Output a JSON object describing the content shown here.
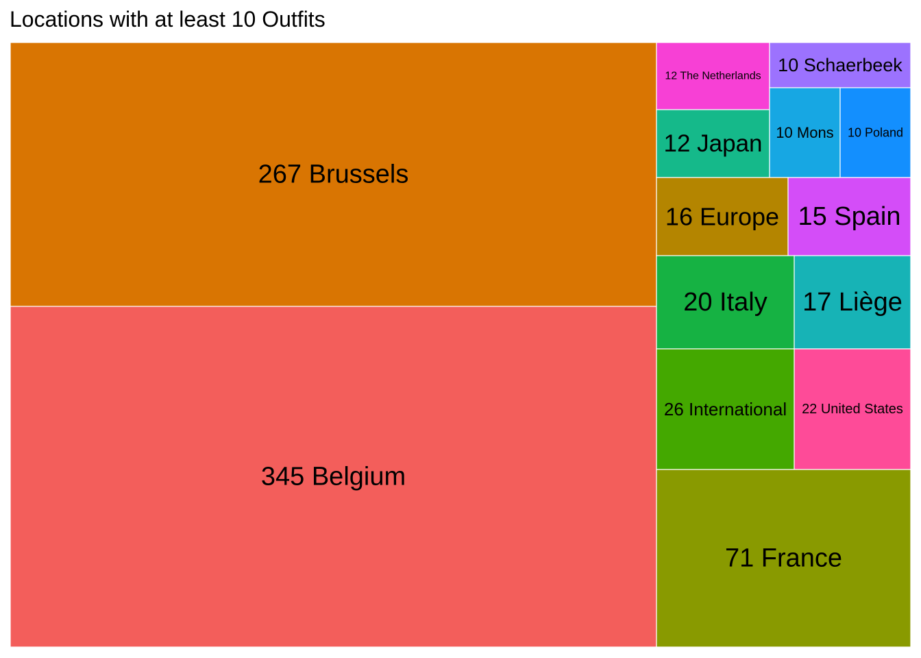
{
  "chart_data": {
    "type": "treemap",
    "title": "Locations with at least 10 Outfits",
    "tiles": [
      {
        "name": "Belgium",
        "value": 345,
        "label": "345 Belgium",
        "color": "#F35E5B"
      },
      {
        "name": "Brussels",
        "value": 267,
        "label": "267 Brussels",
        "color": "#D97502"
      },
      {
        "name": "France",
        "value": 71,
        "label": "71 France",
        "color": "#899A00"
      },
      {
        "name": "International",
        "value": 26,
        "label": "26 International",
        "color": "#44A800"
      },
      {
        "name": "United States",
        "value": 22,
        "label": "22 United States",
        "color": "#FE4B98"
      },
      {
        "name": "Italy",
        "value": 20,
        "label": "20 Italy",
        "color": "#16B243"
      },
      {
        "name": "Liège",
        "value": 17,
        "label": "17 Liège",
        "color": "#17B3B6"
      },
      {
        "name": "Europe",
        "value": 16,
        "label": "16 Europe",
        "color": "#B48500"
      },
      {
        "name": "Spain",
        "value": 15,
        "label": "15 Spain",
        "color": "#D44DF8"
      },
      {
        "name": "Japan",
        "value": 12,
        "label": "12 Japan",
        "color": "#15B98A"
      },
      {
        "name": "The Netherlands",
        "value": 12,
        "label": "12 The Netherlands",
        "color": "#F740D5"
      },
      {
        "name": "Mons",
        "value": 10,
        "label": "10 Mons",
        "color": "#17A7E3"
      },
      {
        "name": "Poland",
        "value": 10,
        "label": "10 Poland",
        "color": "#138FFE"
      },
      {
        "name": "Schaerbeek",
        "value": 10,
        "label": "10 Schaerbeek",
        "color": "#9C72FE"
      }
    ]
  }
}
